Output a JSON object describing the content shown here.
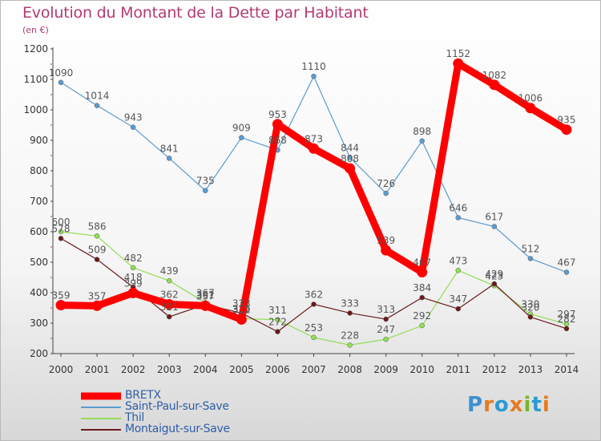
{
  "colors": {
    "title": "#b23a73",
    "axis_text": "#333333",
    "grid": "#d0d0d0",
    "legend_text": "#2e5ea8",
    "brand": [
      "#3d8fd1",
      "#e77b1f",
      "#2a9bd4",
      "#e77b1f",
      "#78b72a",
      "#2a9bd4",
      "#e77b1f"
    ]
  },
  "brand_text": "Proxiti",
  "chart_data": {
    "type": "line",
    "title": "Evolution du Montant de la Dette par Habitant",
    "subtitle": "(en €)",
    "xlabel": "",
    "ylabel": "",
    "x": [
      2000,
      2001,
      2002,
      2003,
      2004,
      2005,
      2006,
      2007,
      2008,
      2009,
      2010,
      2011,
      2012,
      2013,
      2014
    ],
    "ylim": [
      200,
      1200
    ],
    "yticks": [
      200,
      300,
      400,
      500,
      600,
      700,
      800,
      900,
      1000,
      1100,
      1200
    ],
    "grid": false,
    "legend_position": "bottom-left",
    "series": [
      {
        "name": "BRETX",
        "color": "#ff0000",
        "width": 9,
        "values": [
          359,
          357,
          399,
          362,
          357,
          312,
          953,
          873,
          808,
          539,
          467,
          1152,
          1082,
          1006,
          935
        ]
      },
      {
        "name": "Saint-Paul-sur-Save",
        "color": "#5b9bd0",
        "width": 1.2,
        "values": [
          1090,
          1014,
          943,
          841,
          735,
          909,
          868,
          1110,
          844,
          726,
          898,
          646,
          617,
          512,
          467
        ]
      },
      {
        "name": "Thil",
        "color": "#92de56",
        "width": 1.2,
        "values": [
          600,
          586,
          482,
          439,
          367,
          315,
          311,
          253,
          228,
          247,
          292,
          473,
          423,
          330,
          297
        ]
      },
      {
        "name": "Montaigut-sur-Save",
        "color": "#6a1a1a",
        "width": 1.2,
        "values": [
          578,
          509,
          418,
          321,
          361,
          333,
          272,
          362,
          333,
          313,
          384,
          347,
          429,
          320,
          282
        ]
      }
    ]
  }
}
